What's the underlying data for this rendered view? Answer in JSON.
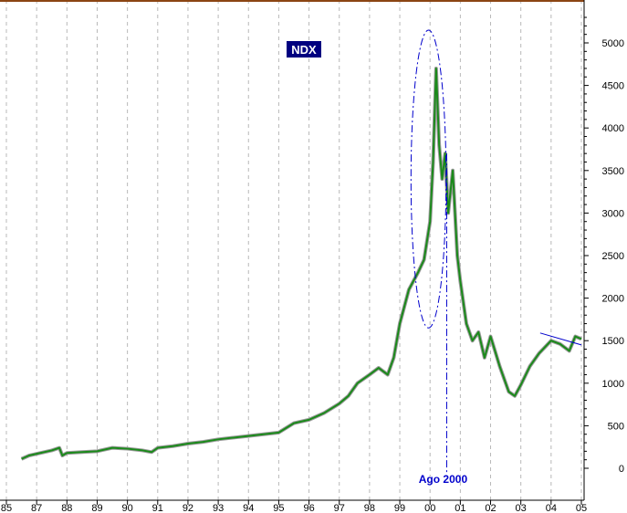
{
  "chart_data": {
    "type": "line",
    "title": "NDX",
    "xlabel": "",
    "ylabel": "",
    "x_tick_labels": [
      "85",
      "87",
      "88",
      "89",
      "90",
      "91",
      "92",
      "93",
      "94",
      "95",
      "96",
      "97",
      "98",
      "99",
      "00",
      "01",
      "02",
      "03",
      "04",
      "05"
    ],
    "xlim": [
      1986.0,
      2005.05
    ],
    "ylim": [
      -100,
      5500
    ],
    "y_ticks": [
      0,
      500,
      1000,
      1500,
      2000,
      2500,
      3000,
      3500,
      4000,
      4500,
      5000
    ],
    "y_tick_labels": [
      "0",
      "500",
      "1000",
      "1500",
      "2000",
      "2500",
      "3000",
      "3500",
      "4000",
      "4500",
      "5000"
    ],
    "grid": "vertical dashed",
    "legend": "none",
    "series": [
      {
        "x": [
          1986.0,
          1986.5,
          1987.0,
          1987.5,
          1987.75,
          1987.85,
          1988.0,
          1988.5,
          1989.0,
          1989.5,
          1990.0,
          1990.5,
          1990.8,
          1991.0,
          1991.5,
          1992.0,
          1992.5,
          1993.0,
          1993.5,
          1994.0,
          1994.5,
          1995.0,
          1995.5,
          1996.0,
          1996.5,
          1997.0,
          1997.3,
          1997.6,
          1998.0,
          1998.3,
          1998.6,
          1998.8,
          1999.0,
          1999.3,
          1999.6,
          1999.8,
          2000.0,
          2000.1,
          2000.2,
          2000.3,
          2000.4,
          2000.5,
          2000.6,
          2000.75,
          2000.9,
          2001.0,
          2001.2,
          2001.4,
          2001.6,
          2001.8,
          2002.0,
          2002.3,
          2002.6,
          2002.8,
          2003.0,
          2003.3,
          2003.6,
          2004.0,
          2004.3,
          2004.6,
          2004.8,
          2005.0
        ],
        "y": [
          110,
          150,
          170,
          210,
          240,
          150,
          180,
          190,
          200,
          240,
          230,
          210,
          190,
          240,
          260,
          290,
          310,
          340,
          360,
          380,
          400,
          420,
          530,
          570,
          650,
          760,
          850,
          1000,
          1100,
          1180,
          1100,
          1300,
          1700,
          2100,
          2300,
          2450,
          2900,
          3600,
          4700,
          3800,
          3400,
          3700,
          3000,
          3500,
          2500,
          2200,
          1700,
          1500,
          1600,
          1300,
          1550,
          1200,
          900,
          850,
          980,
          1200,
          1350,
          1500,
          1460,
          1380,
          1550,
          1520
        ],
        "color": "#1a8a1a"
      }
    ],
    "annotations": {
      "box_label_color": "#000080",
      "ellipse_color": "#0000cc",
      "line_color": "#0000cc",
      "text_color": "#0000cc",
      "vline_label": "Ago 2000",
      "vline_x": 2000.55,
      "ellipse": {
        "cx": 1999.95,
        "cy": 3400,
        "rx": 0.58,
        "ry": 1750
      },
      "trendline": {
        "x1": 2004.0,
        "y1": 1590,
        "x2": 2005.05,
        "y2": 1450
      }
    },
    "top_border_color": "#8b4513"
  }
}
